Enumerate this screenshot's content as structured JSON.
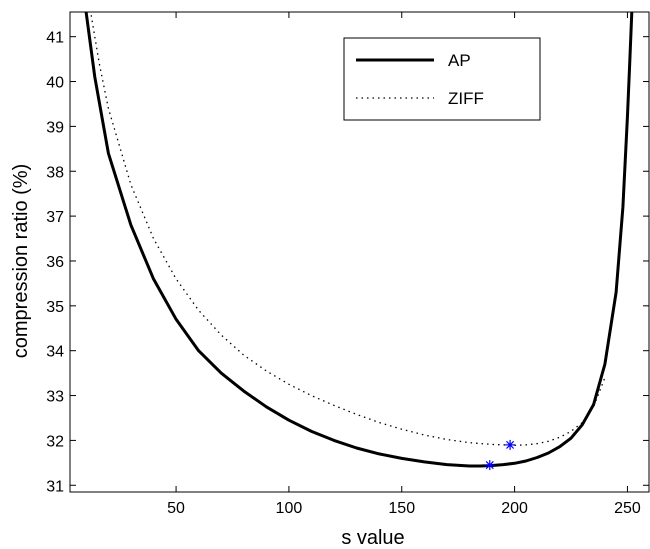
{
  "chart_data": {
    "type": "line",
    "title": "",
    "xlabel": "s value",
    "ylabel": "compression ratio (%)",
    "xlim": [
      3,
      260
    ],
    "ylim": [
      30.85,
      41.55
    ],
    "xticks": [
      50,
      100,
      150,
      200,
      250
    ],
    "yticks": [
      31,
      32,
      33,
      34,
      35,
      36,
      37,
      38,
      39,
      40,
      41
    ],
    "grid": false,
    "legend_position": "top-right",
    "series": [
      {
        "name": "AP",
        "style": "solid",
        "color": "#000000",
        "x": [
          10,
          14,
          20,
          30,
          40,
          50,
          60,
          70,
          80,
          90,
          100,
          110,
          120,
          130,
          140,
          150,
          160,
          170,
          180,
          185,
          190,
          195,
          200,
          205,
          210,
          215,
          220,
          225,
          230,
          235,
          240,
          245,
          248,
          250,
          251,
          252
        ],
        "y": [
          41.6,
          40.1,
          38.4,
          36.8,
          35.6,
          34.7,
          34.0,
          33.5,
          33.1,
          32.75,
          32.45,
          32.2,
          32.0,
          31.83,
          31.7,
          31.6,
          31.52,
          31.46,
          31.43,
          31.43,
          31.44,
          31.46,
          31.49,
          31.54,
          31.62,
          31.72,
          31.86,
          32.05,
          32.35,
          32.8,
          33.7,
          35.3,
          37.2,
          39.2,
          40.4,
          41.6
        ]
      },
      {
        "name": "ZIFF",
        "style": "dotted",
        "color": "#000000",
        "x": [
          12,
          16,
          20,
          30,
          40,
          50,
          60,
          70,
          80,
          90,
          100,
          110,
          120,
          130,
          140,
          150,
          160,
          170,
          180,
          190,
          195,
          200,
          205,
          210,
          215,
          220,
          225,
          230,
          235,
          240
        ],
        "y": [
          41.6,
          40.4,
          39.4,
          37.7,
          36.5,
          35.6,
          34.9,
          34.35,
          33.9,
          33.55,
          33.25,
          33.0,
          32.78,
          32.58,
          32.4,
          32.25,
          32.12,
          32.02,
          31.95,
          31.91,
          31.9,
          31.89,
          31.9,
          31.93,
          31.98,
          32.07,
          32.2,
          32.4,
          32.75,
          33.4
        ]
      }
    ],
    "markers": [
      {
        "series": "AP",
        "x": 189,
        "y": 31.45,
        "symbol": "*",
        "color": "#0000ff"
      },
      {
        "series": "ZIFF",
        "x": 198,
        "y": 31.9,
        "symbol": "*",
        "color": "#0000ff"
      }
    ]
  }
}
